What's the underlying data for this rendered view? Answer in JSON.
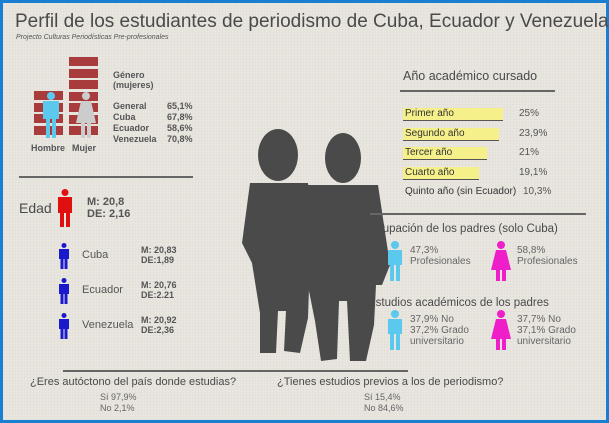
{
  "title": "Perfil de los estudiantes de periodismo de Cuba, Ecuador y Venezuela",
  "subtitle": "Projecto Culturas Periodísticas Pre-profesionales",
  "gender": {
    "heading1": "Género",
    "heading2": "(mujeres)",
    "male_label": "Hombre",
    "female_label": "Mujer",
    "rows": [
      {
        "label": "General",
        "value": "65,1%"
      },
      {
        "label": "Cuba",
        "value": "67,8%"
      },
      {
        "label": "Ecuador",
        "value": "58,6%"
      },
      {
        "label": "Venezuela",
        "value": "70,8%"
      }
    ]
  },
  "age": {
    "label": "Edad",
    "mean": "M: 20,8",
    "sd": "DE: 2,16",
    "countries": [
      {
        "name": "Cuba",
        "mean": "M: 20,83",
        "sd": "DE:1,89"
      },
      {
        "name": "Ecuador",
        "mean": "M: 20,76",
        "sd": "DE:2.21"
      },
      {
        "name": "Venezuela",
        "mean": "M: 20,92",
        "sd": "DE:2,36"
      }
    ]
  },
  "year": {
    "heading": "Año académico cursado",
    "rows": [
      {
        "label": "Primer año",
        "value": "25%",
        "pct": 25
      },
      {
        "label": "Segundo año",
        "value": "23,9%",
        "pct": 23.9
      },
      {
        "label": "Tercer año",
        "value": "21%",
        "pct": 21
      },
      {
        "label": "Cuarto año",
        "value": "19,1%",
        "pct": 19.1
      },
      {
        "label": "Quinto año (sin Ecuador)",
        "value": "10,3%",
        "pct": 10.3
      }
    ]
  },
  "parents_job": {
    "heading": "Ocupación de los padres (solo Cuba)",
    "father": {
      "l1": "47,3%",
      "l2": "Profesionales"
    },
    "mother": {
      "l1": "58,8%",
      "l2": "Profesionales"
    }
  },
  "parents_study": {
    "heading": "Estudios académicos de los padres",
    "father": {
      "l1": "37,9% No",
      "l2": "37,2% Grado",
      "l3": "universitario"
    },
    "mother": {
      "l1": "37,7% No",
      "l2": "37,1% Grado",
      "l3": "universitario"
    }
  },
  "q1": {
    "question": "¿Eres autóctono del país donde estudias?",
    "yes": "Sí   97,9%",
    "no": "No  2,1%"
  },
  "q2": {
    "question": "¿Tienes estudios previos a los de periodismo?",
    "yes": "Sí   15,4%",
    "no": "No 84,6%"
  },
  "colors": {
    "brick": "#a83c3c",
    "male": "#5bc8ee",
    "female": "#ee1ec8",
    "age": "#e01010",
    "country": "#1a1acc",
    "highlight": "#f5f08a",
    "silhouette": "#4a4a4a"
  }
}
